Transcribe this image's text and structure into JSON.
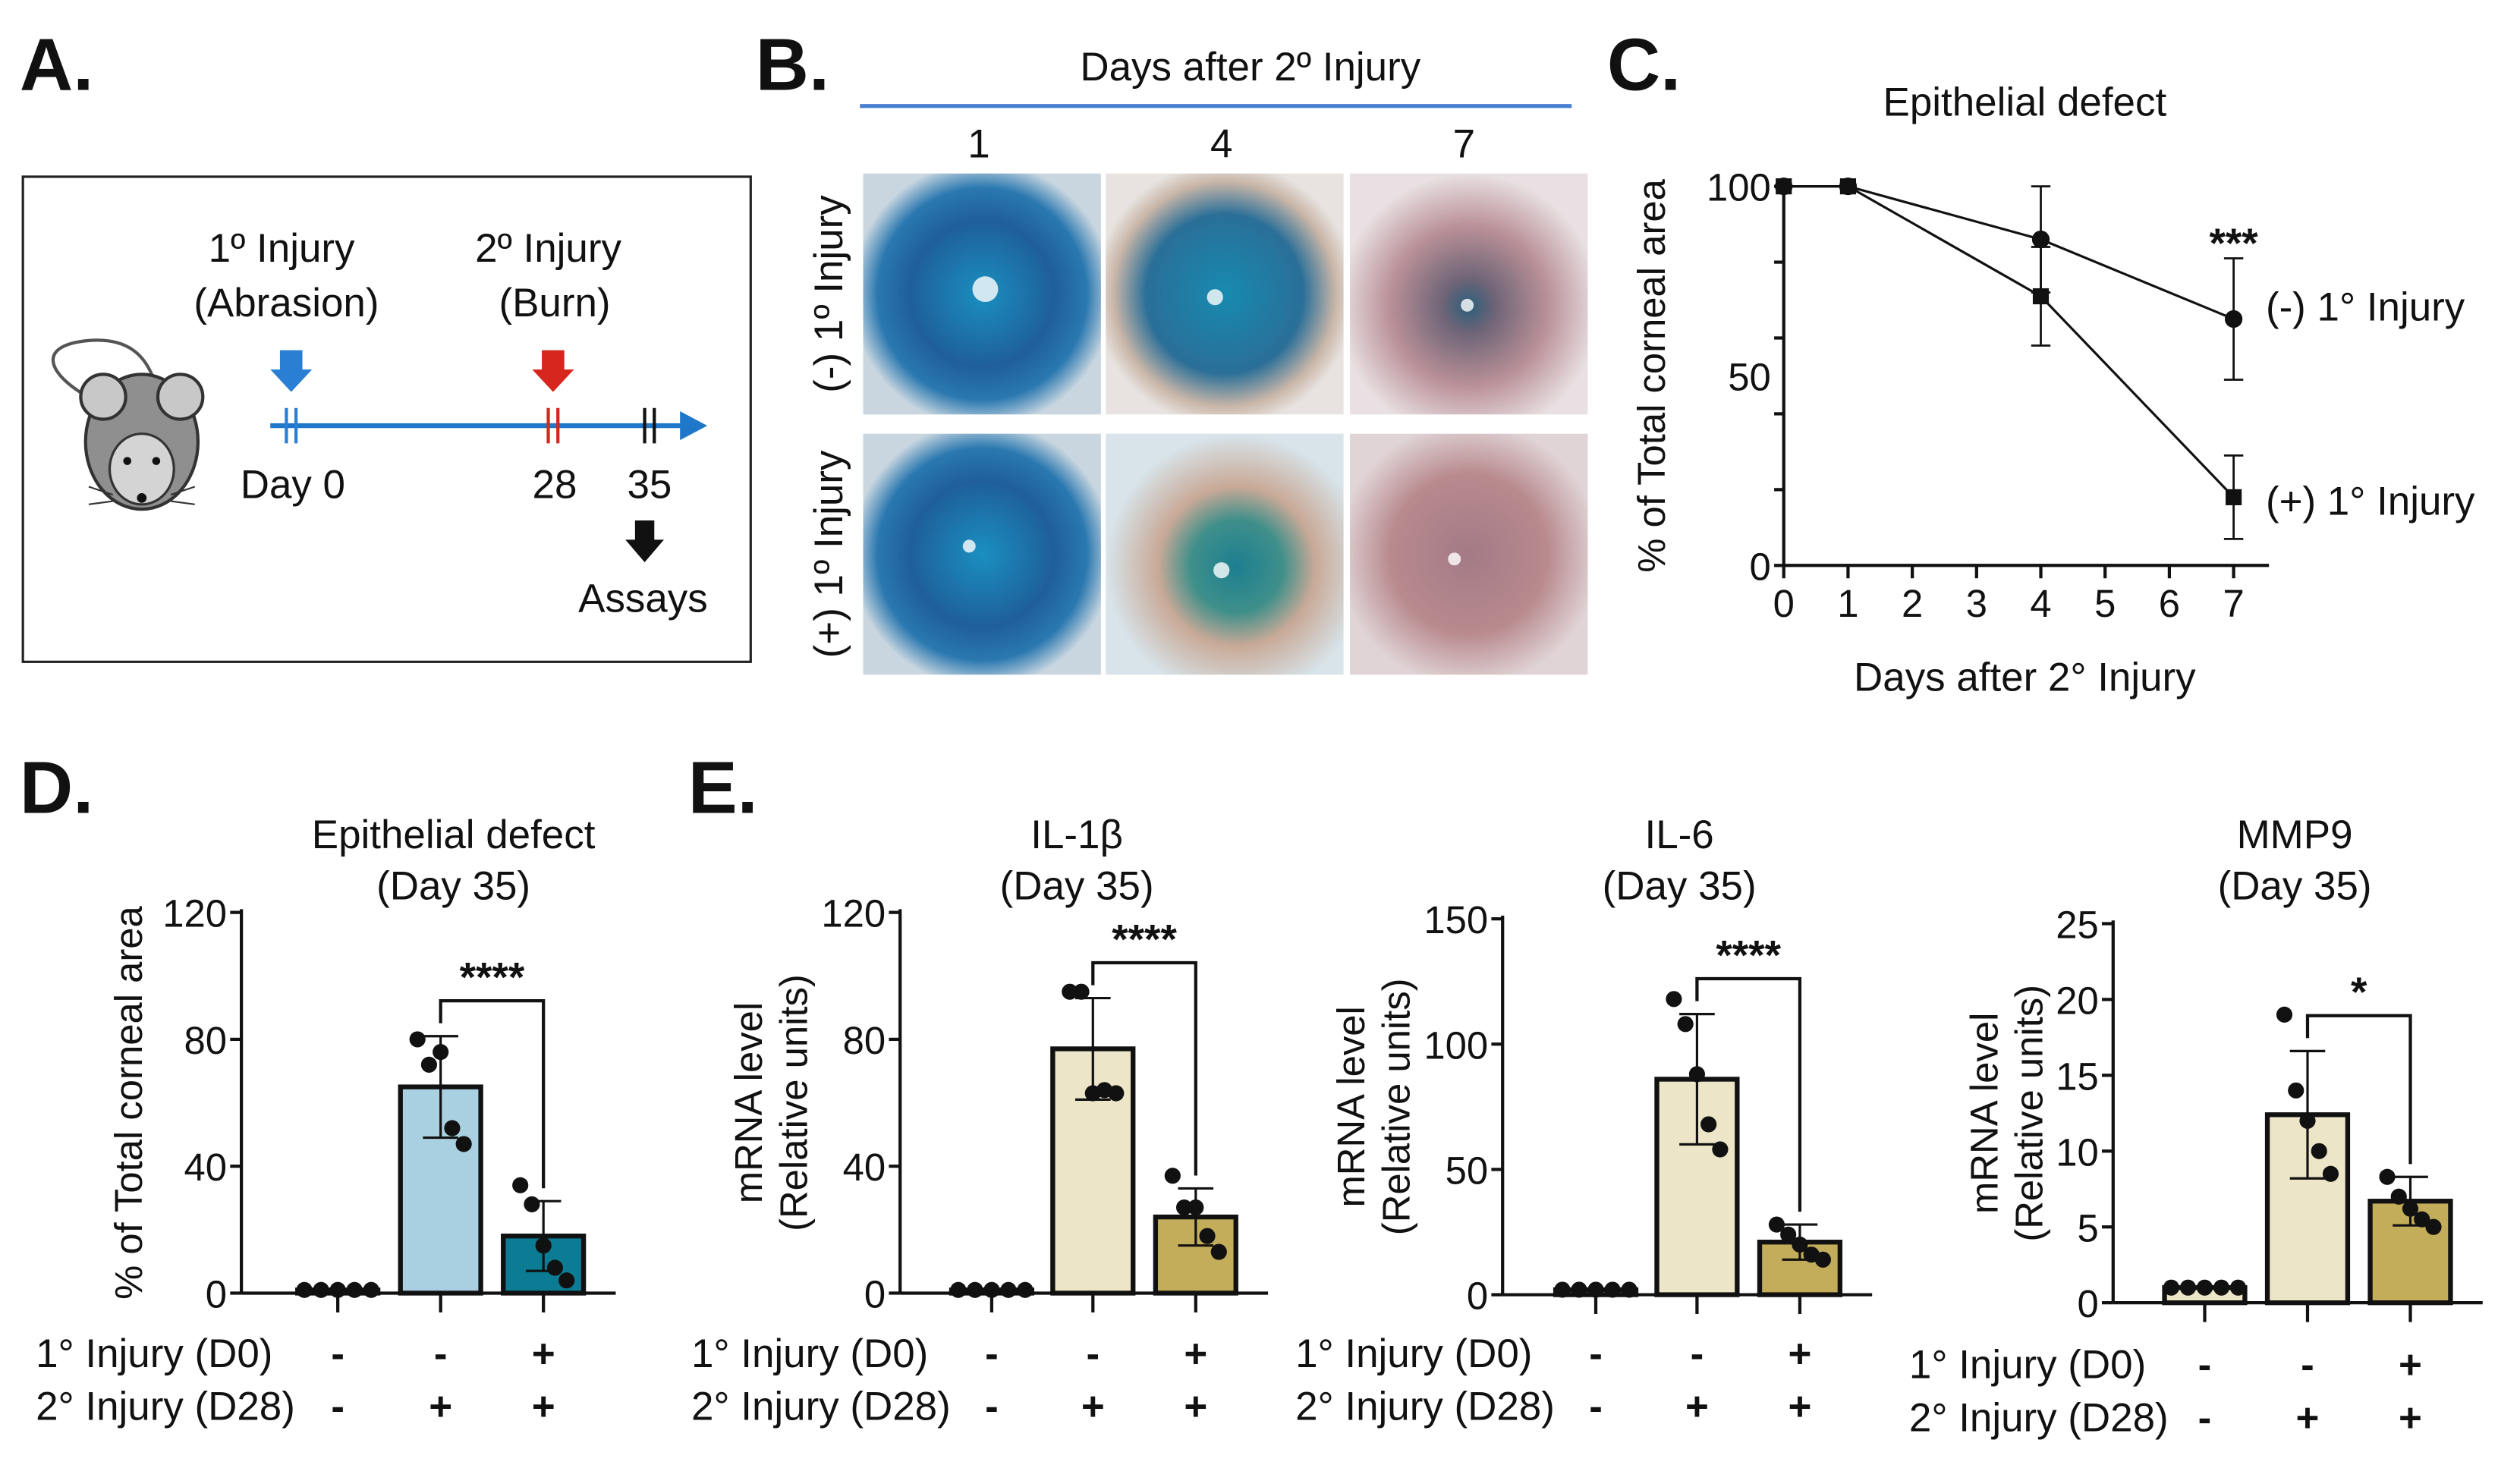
{
  "panels": {
    "a": {
      "label": "A.",
      "primary_injury": "1º Injury",
      "primary_type": "(Abrasion)",
      "secondary_injury": "2º Injury",
      "secondary_type": "(Burn)",
      "day0": "Day 0",
      "day28": "28",
      "day35": "35",
      "assays": "Assays"
    },
    "b": {
      "label": "B.",
      "header": "Days after 2º Injury",
      "columns": [
        "1",
        "4",
        "7"
      ],
      "rows": [
        "(-) 1º Injury",
        "(+) 1º Injury"
      ]
    },
    "c": {
      "label": "C."
    },
    "d": {
      "label": "D."
    },
    "e": {
      "label": "E."
    }
  },
  "colors": {
    "timeline": "#1f77c9",
    "primary_arrow": "#2a7fd4",
    "secondary_arrow": "#d7261e",
    "header_line": "#4a7fd0"
  },
  "chart_data": [
    {
      "id": "c",
      "type": "line",
      "title": "Epithelial defect",
      "xlabel": "Days after 2° Injury",
      "ylabel": "% of Total corneal area",
      "xlim": [
        0,
        7
      ],
      "ylim": [
        0,
        100
      ],
      "xticks": [
        "0",
        "1",
        "2",
        "3",
        "4",
        "5",
        "6",
        "7"
      ],
      "yticks": [
        "0",
        "50",
        "100"
      ],
      "x": [
        0,
        1,
        4,
        7
      ],
      "series": [
        {
          "name": "(-) 1° Injury",
          "marker": "circle",
          "values": [
            100,
            100,
            86,
            65
          ],
          "error": [
            0,
            0,
            14,
            16
          ]
        },
        {
          "name": "(+) 1° Injury",
          "marker": "square",
          "values": [
            100,
            100,
            71,
            18
          ],
          "error": [
            0,
            0,
            13,
            11
          ]
        }
      ],
      "annotation": {
        "x": 7,
        "text": "***"
      }
    },
    {
      "id": "d",
      "type": "bar",
      "title": [
        "Epithelial defect",
        "(Day 35)"
      ],
      "ylabel": [
        "% of Total corneal area"
      ],
      "ylim": [
        0,
        120
      ],
      "yticks": [
        "0",
        "40",
        "80",
        "120"
      ],
      "values": [
        1,
        65,
        18
      ],
      "error": [
        0,
        16,
        11
      ],
      "points": [
        [
          1,
          1,
          1,
          1,
          1
        ],
        [
          80,
          72,
          76,
          52,
          47
        ],
        [
          34,
          28,
          15,
          8,
          4
        ]
      ],
      "colors": [
        "#a9d0e1",
        "#a9d0e1",
        "#0b7c93"
      ],
      "significance": {
        "between": [
          1,
          2
        ],
        "text": "****"
      },
      "row1_label": "1° Injury (D0)",
      "row1": [
        "-",
        "-",
        "+"
      ],
      "row2_label": "2° Injury (D28)",
      "row2": [
        "-",
        "+",
        "+"
      ]
    },
    {
      "id": "e1",
      "type": "bar",
      "title": [
        "IL-1β",
        "(Day 35)"
      ],
      "ylabel": [
        "mRNA level",
        "(Relative units)"
      ],
      "ylim": [
        0,
        120
      ],
      "yticks": [
        "0",
        "40",
        "80",
        "120"
      ],
      "values": [
        1,
        77,
        24
      ],
      "error": [
        0,
        16,
        9
      ],
      "points": [
        [
          1,
          1,
          1,
          1,
          1
        ],
        [
          95,
          95,
          63,
          64,
          63
        ],
        [
          37,
          27,
          27,
          18,
          13
        ]
      ],
      "colors": [
        "#ede5c8",
        "#ede5c8",
        "#c4ad5a"
      ],
      "significance": {
        "between": [
          1,
          2
        ],
        "text": "****"
      },
      "row1_label": "1° Injury (D0)",
      "row1": [
        "-",
        "-",
        "+"
      ],
      "row2_label": "2° Injury (D28)",
      "row2": [
        "-",
        "+",
        "+"
      ]
    },
    {
      "id": "e2",
      "type": "bar",
      "title": [
        "IL-6",
        "(Day 35)"
      ],
      "ylabel": [
        "mRNA level",
        "(Relative units)"
      ],
      "ylim": [
        0,
        150
      ],
      "yticks": [
        "0",
        "50",
        "100",
        "150"
      ],
      "values": [
        2,
        86,
        21
      ],
      "error": [
        0,
        26,
        7
      ],
      "points": [
        [
          2,
          2,
          2,
          2,
          2
        ],
        [
          118,
          108,
          88,
          68,
          58
        ],
        [
          28,
          24,
          20,
          16,
          14
        ]
      ],
      "colors": [
        "#ede5c8",
        "#ede5c8",
        "#c4ad5a"
      ],
      "significance": {
        "between": [
          1,
          2
        ],
        "text": "****"
      },
      "row1_label": "1° Injury (D0)",
      "row1": [
        "-",
        "-",
        "+"
      ],
      "row2_label": "2° Injury (D28)",
      "row2": [
        "-",
        "+",
        "+"
      ]
    },
    {
      "id": "e3",
      "type": "bar",
      "title": [
        "MMP9",
        "(Day 35)"
      ],
      "ylabel": [
        "mRNA level",
        "(Relative units)"
      ],
      "ylim": [
        0,
        25
      ],
      "yticks": [
        "0",
        "5",
        "10",
        "15",
        "20",
        "25"
      ],
      "values": [
        1,
        12.4,
        6.7
      ],
      "error": [
        0,
        4.2,
        1.6
      ],
      "points": [
        [
          1,
          1,
          1,
          1,
          1
        ],
        [
          19,
          14,
          12,
          10,
          8.5
        ],
        [
          8.3,
          7,
          6.2,
          5.5,
          5
        ]
      ],
      "colors": [
        "#ede5c8",
        "#ede5c8",
        "#c4ad5a"
      ],
      "significance": {
        "between": [
          1,
          2
        ],
        "text": "*"
      },
      "row1_label": "1° Injury (D0)",
      "row1": [
        "-",
        "-",
        "+"
      ],
      "row2_label": "2° Injury (D28)",
      "row2": [
        "-",
        "+",
        "+"
      ]
    }
  ]
}
